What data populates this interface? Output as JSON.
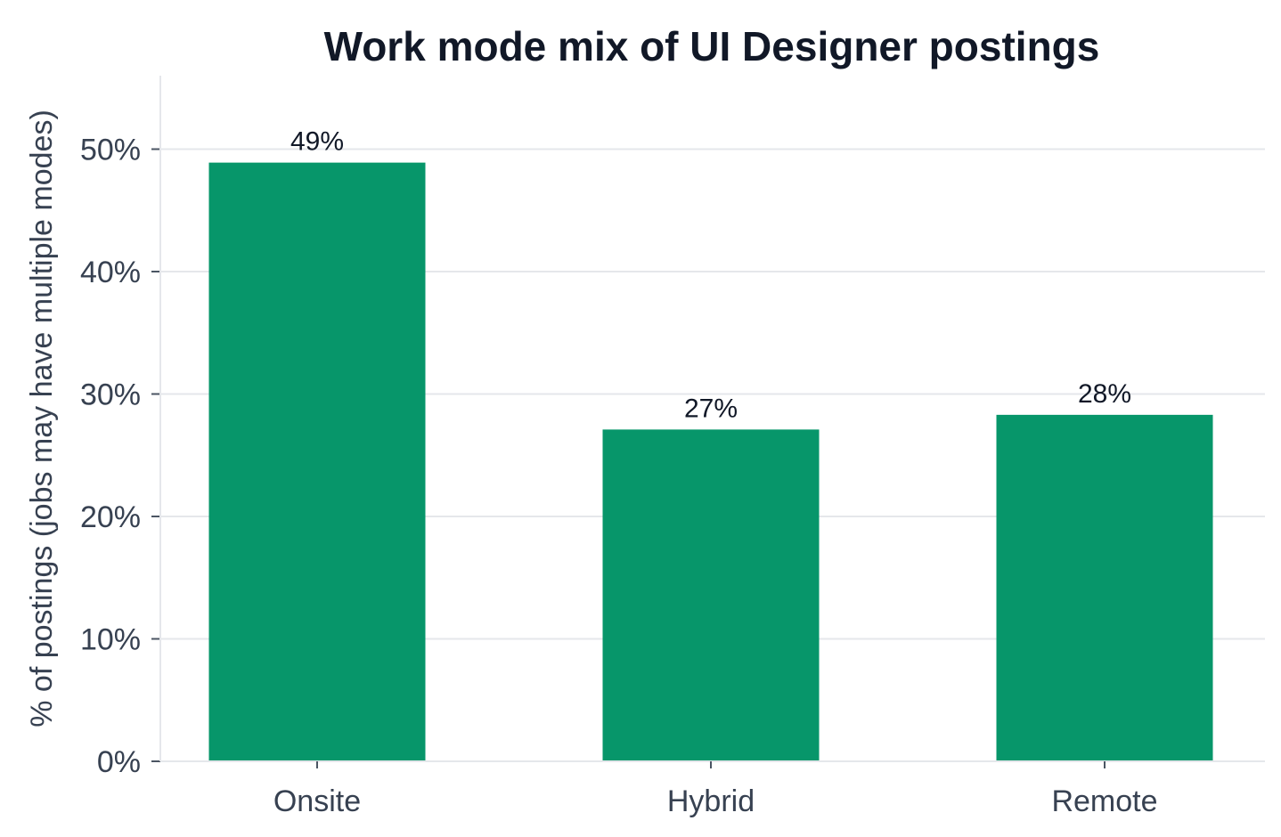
{
  "chart_data": {
    "type": "bar",
    "title": "Work mode mix of UI Designer postings",
    "xlabel": "",
    "ylabel": "% of postings (jobs may have multiple modes)",
    "categories": [
      "Onsite",
      "Hybrid",
      "Remote"
    ],
    "values": [
      48.9,
      27.1,
      28.3
    ],
    "data_labels": [
      "49%",
      "27%",
      "28%"
    ],
    "ylim": [
      0,
      56
    ],
    "yticks": [
      0,
      10,
      20,
      30,
      40,
      50
    ],
    "ytick_labels": [
      "0%",
      "10%",
      "20%",
      "30%",
      "40%",
      "50%"
    ],
    "grid": true,
    "legend": "none",
    "colors": {
      "bar": "#07966a",
      "grid": "#e5e7eb",
      "axis": "#e5e7eb",
      "text": "#374151",
      "title": "#111827"
    }
  }
}
